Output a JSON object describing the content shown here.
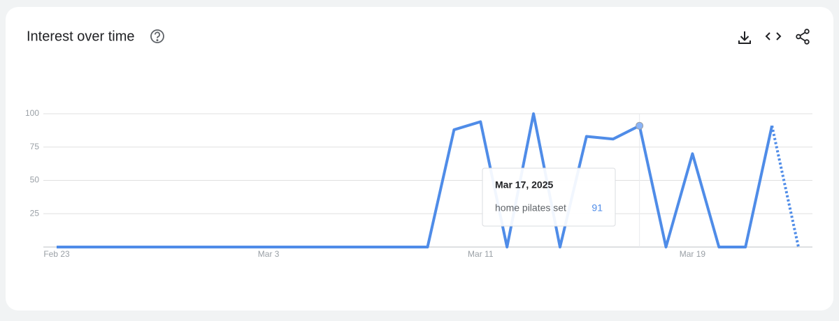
{
  "chart_data": {
    "type": "line",
    "title": "Interest over time",
    "categories": [
      "Feb 23",
      null,
      null,
      null,
      null,
      null,
      null,
      null,
      "Mar 3",
      null,
      null,
      null,
      null,
      null,
      null,
      null,
      "Mar 11",
      null,
      null,
      null,
      null,
      null,
      null,
      null,
      "Mar 19",
      null,
      null,
      null,
      null
    ],
    "series": [
      {
        "name": "home pilates set",
        "color": "#4f8ce8",
        "values": [
          0,
          0,
          0,
          0,
          0,
          0,
          0,
          0,
          0,
          0,
          0,
          0,
          0,
          0,
          0,
          88,
          94,
          0,
          100,
          0,
          83,
          81,
          91,
          0,
          70,
          0,
          0,
          91,
          0
        ]
      }
    ],
    "partial_last_point": true,
    "ylim": [
      0,
      100
    ],
    "yticks": [
      25,
      50,
      75,
      100
    ],
    "grid": true,
    "tooltip": {
      "date": "Mar 17, 2025",
      "index": 22
    }
  }
}
